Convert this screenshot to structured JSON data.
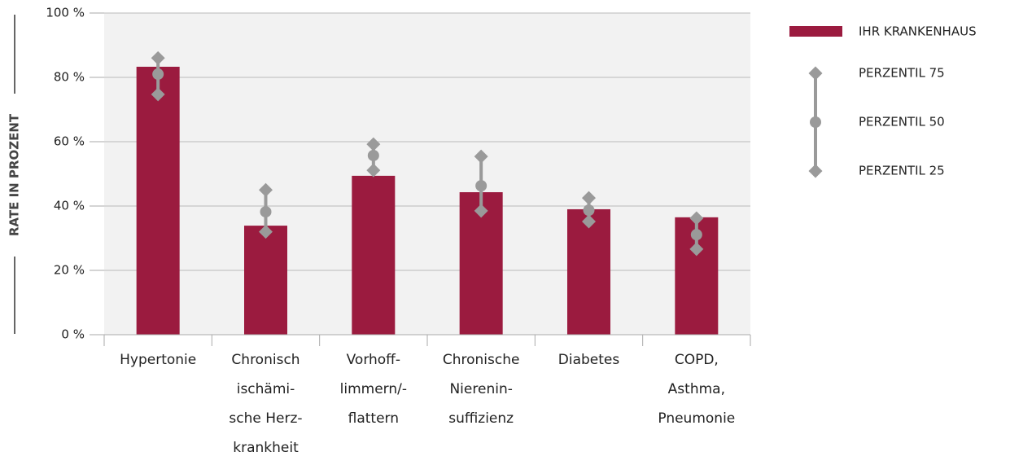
{
  "chart_data": {
    "type": "bar",
    "y_axis_label": "RATE IN PROZENT",
    "categories": [
      [
        "Hypertonie"
      ],
      [
        "Chronisch",
        "ischämi-",
        "sche Herz-",
        "krankheit"
      ],
      [
        "Vorhoff-",
        "limmern/-",
        "flattern"
      ],
      [
        "Chronische",
        "Nierenin-",
        "suffizienz"
      ],
      [
        "Diabetes"
      ],
      [
        "COPD,",
        "Asthma,",
        "Pneumonie"
      ]
    ],
    "series": [
      {
        "name": "IHR KRANKENHAUS",
        "color": "#9b1b3f",
        "values": [
          83.3,
          33.9,
          49.4,
          44.3,
          39,
          36.5
        ]
      },
      {
        "name": "PERZENTIL 75",
        "color": "#9a9a9a",
        "marker": "diamond",
        "values": [
          86,
          45,
          59.2,
          55.4,
          42.5,
          36.2
        ]
      },
      {
        "name": "PERZENTIL 50",
        "color": "#9a9a9a",
        "marker": "circle",
        "values": [
          81,
          38.2,
          55.7,
          46.3,
          38.7,
          31.1
        ]
      },
      {
        "name": "PERZENTIL 25",
        "color": "#9a9a9a",
        "marker": "diamond",
        "values": [
          74.7,
          32,
          51.1,
          38.5,
          35.2,
          26.6
        ]
      }
    ],
    "ylim": [
      0,
      100
    ],
    "yticks": [
      {
        "value": 0,
        "label": "0 %"
      },
      {
        "value": 20,
        "label": "20 %"
      },
      {
        "value": 40,
        "label": "40 %"
      },
      {
        "value": 60,
        "label": "60 %"
      },
      {
        "value": 80,
        "label": "80 %"
      },
      {
        "value": 100,
        "label": "100 %"
      }
    ],
    "grid": true
  }
}
